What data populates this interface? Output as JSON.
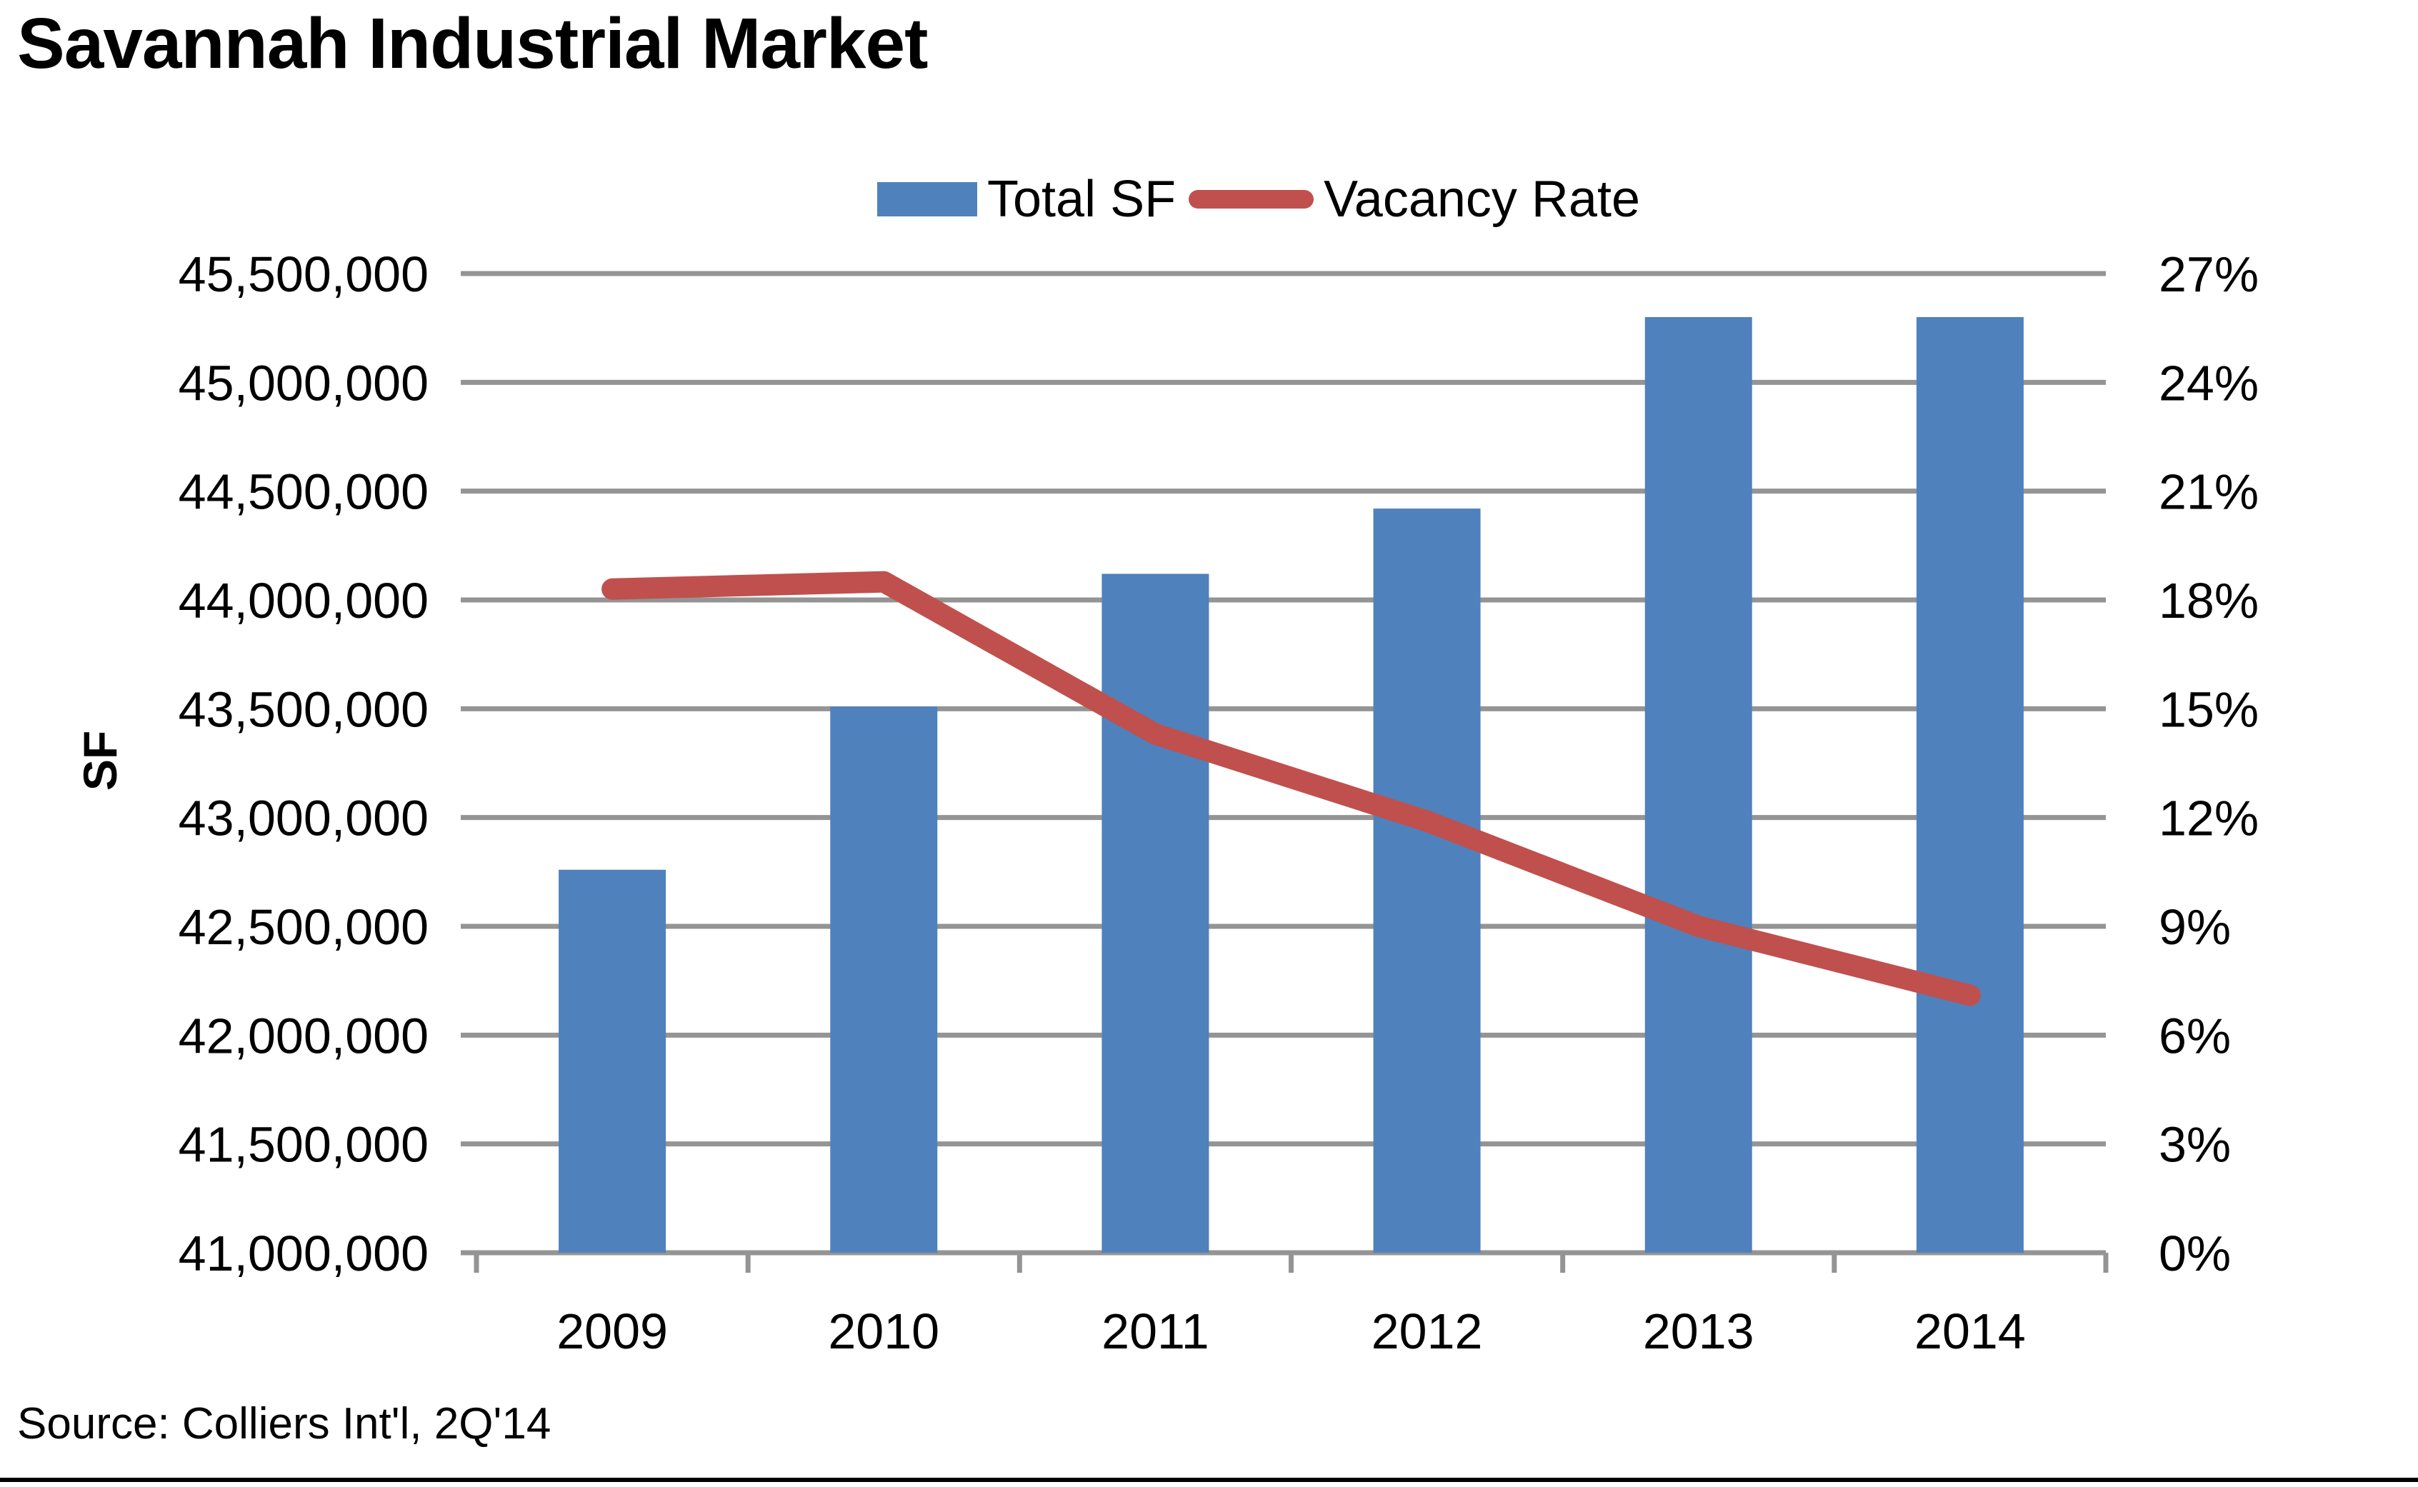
{
  "page": {
    "title": "Savannah Industrial Market",
    "source_note": "Source: Colliers Int'l, 2Q'14"
  },
  "legend": [
    {
      "label": "Total SF",
      "type": "bar",
      "color": "#4F81BD"
    },
    {
      "label": "Vacancy Rate",
      "type": "line",
      "color": "#C0504D"
    }
  ],
  "chart_data": {
    "type": "bar",
    "subtype": "combo-bar-line-dual-axis",
    "title": "Savannah Industrial Market",
    "categories": [
      "2009",
      "2010",
      "2011",
      "2012",
      "2013",
      "2014"
    ],
    "series": [
      {
        "name": "Total SF",
        "type": "bar",
        "axis": "left",
        "color": "#4F81BD",
        "values": [
          42760000,
          43510000,
          44120000,
          44420000,
          45300000,
          45300000
        ]
      },
      {
        "name": "Vacancy Rate",
        "type": "line",
        "axis": "right",
        "color": "#C0504D",
        "values": [
          18.3,
          18.5,
          14.3,
          11.9,
          9.0,
          7.1
        ]
      }
    ],
    "left_axis": {
      "title": "SF",
      "min": 41000000,
      "max": 45500000,
      "step": 500000
    },
    "right_axis": {
      "min": 0,
      "max": 27,
      "step": 3,
      "suffix": "%"
    },
    "grid": true,
    "legend_position": "top-center",
    "gridline_color": "#949494",
    "xlabel": "",
    "ylabel": "SF"
  }
}
